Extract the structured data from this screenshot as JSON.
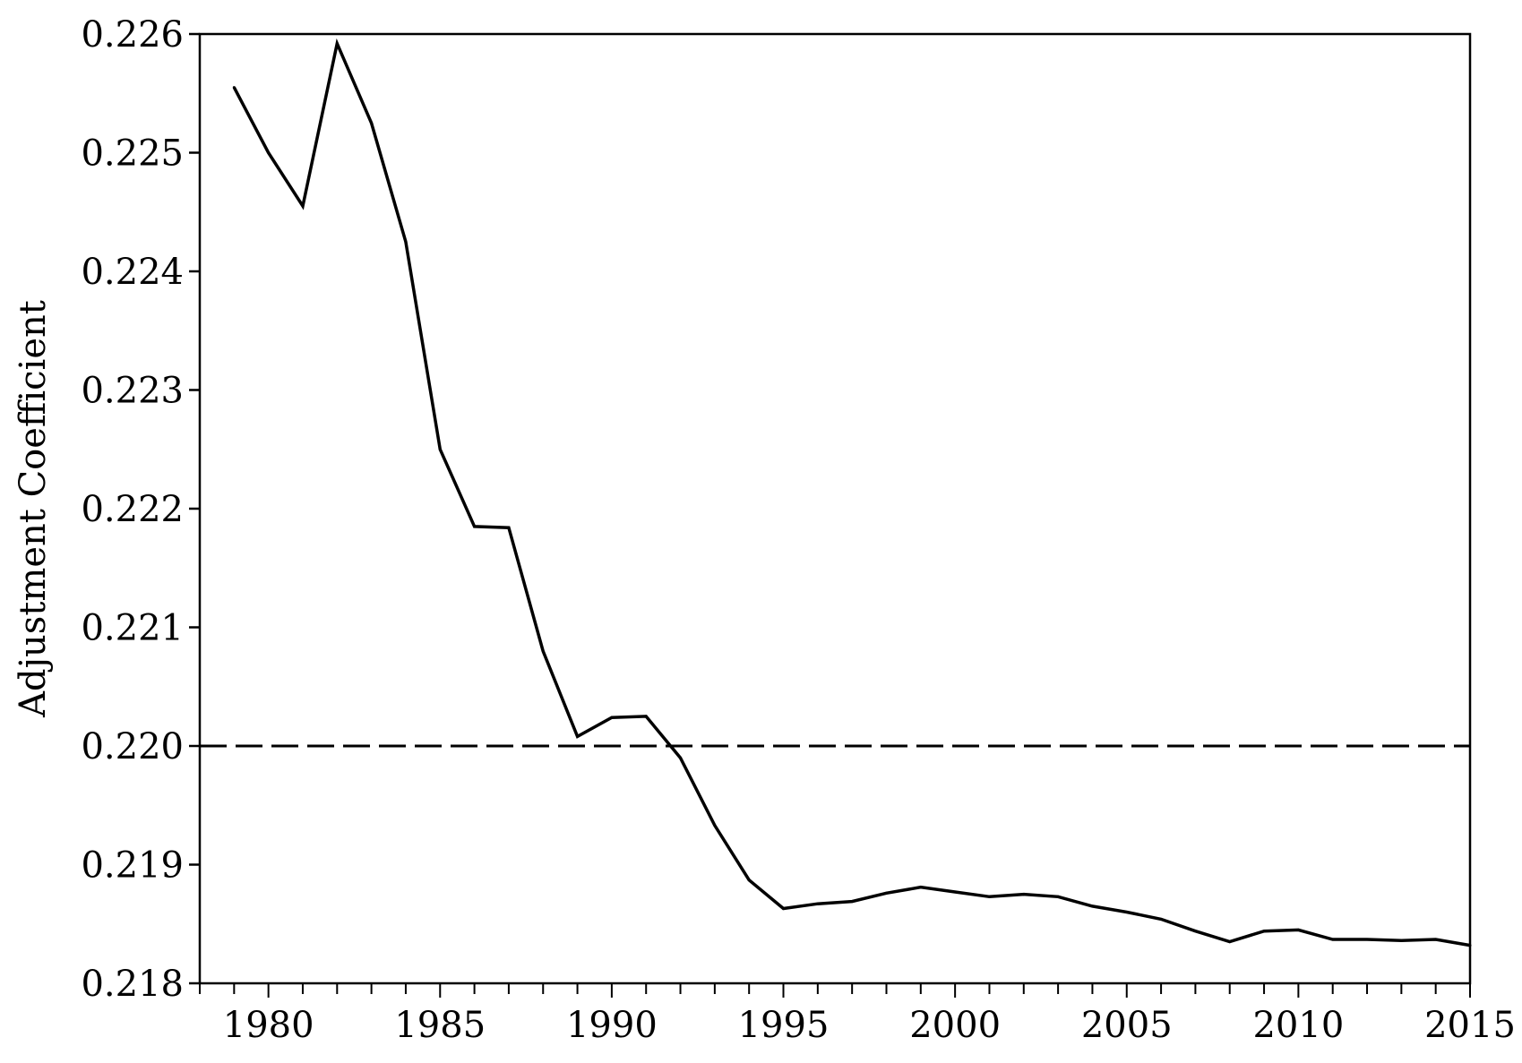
{
  "chart_data": {
    "type": "line",
    "title": "",
    "xlabel": "",
    "ylabel": "Adjustment  Coefficient",
    "xlim": [
      1978,
      2015
    ],
    "ylim": [
      0.218,
      0.226
    ],
    "x_ticks": [
      1980,
      1985,
      1990,
      1995,
      2000,
      2005,
      2010,
      2015
    ],
    "y_ticks": [
      "0.218",
      "0.219",
      "0.220",
      "0.221",
      "0.222",
      "0.223",
      "0.224",
      "0.225",
      "0.226"
    ],
    "grid": false,
    "legend": "none",
    "reference_line": {
      "y": 0.22,
      "style": "dashed"
    },
    "series": [
      {
        "x": [
          1979,
          1980,
          1981,
          1982,
          1983,
          1984,
          1985,
          1986,
          1987,
          1988,
          1989,
          1990,
          1991,
          1992,
          1993,
          1994,
          1995,
          1996,
          1997,
          1998,
          1999,
          2000,
          2001,
          2002,
          2003,
          2004,
          2005,
          2006,
          2007,
          2008,
          2009,
          2010,
          2011,
          2012,
          2013,
          2014,
          2015
        ],
        "values": [
          0.22555,
          0.225,
          0.22455,
          0.22592,
          0.22525,
          0.22425,
          0.2225,
          0.22185,
          0.22184,
          0.2208,
          0.22008,
          0.22024,
          0.22025,
          0.2199,
          0.21933,
          0.21887,
          0.21863,
          0.21867,
          0.21869,
          0.21876,
          0.21881,
          0.21877,
          0.21873,
          0.21875,
          0.21873,
          0.21865,
          0.2186,
          0.21854,
          0.21844,
          0.21835,
          0.21844,
          0.21845,
          0.21837,
          0.21837,
          0.21836,
          0.21837,
          0.21832
        ],
        "color": "#000000"
      }
    ]
  }
}
